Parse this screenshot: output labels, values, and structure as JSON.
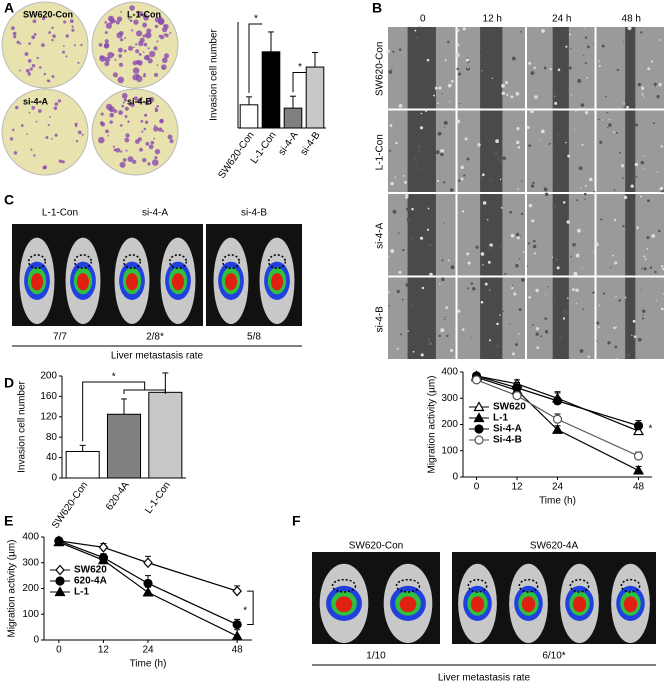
{
  "panels": {
    "labels": [
      "A",
      "B",
      "C",
      "D",
      "E",
      "F"
    ],
    "a_photos": [
      "SW620-Con",
      "L-1-Con",
      "si-4-A",
      "si-4-B"
    ],
    "b_columns": [
      "0",
      "12 h",
      "24 h",
      "48 h"
    ],
    "b_rows": [
      "SW620-Con",
      "L-1-Con",
      "si-4-A",
      "si-4-B"
    ],
    "c_groups": [
      "L-1-Con",
      "si-4-A",
      "si-4-B"
    ],
    "c_rates": [
      "7/7",
      "2/8*",
      "5/8"
    ],
    "c_caption": "Liver metastasis rate",
    "f_groups": [
      "SW620-Con",
      "SW620-4A"
    ],
    "f_rates": [
      "1/10",
      "6/10*"
    ],
    "f_caption": "Liver metastasis rate"
  },
  "chart_data": [
    {
      "type": "bar",
      "ylabel": "Invasion cell number",
      "categories": [
        "SW620-Con",
        "L-1-Con",
        "si-4-A",
        "si-4-B"
      ],
      "values": [
        35,
        115,
        30,
        92
      ],
      "errors": [
        12,
        30,
        18,
        22
      ],
      "colors": [
        "#ffffff",
        "#000000",
        "#808080",
        "#c8c8c8"
      ],
      "ylim": [
        0,
        160
      ],
      "annotations": [
        "*",
        "*"
      ]
    },
    {
      "type": "bar",
      "ylabel": "Invasion cell number",
      "categories": [
        "SW620-Con",
        "620-4A",
        "L-1-Con"
      ],
      "values": [
        52,
        125,
        168
      ],
      "errors": [
        12,
        30,
        38
      ],
      "colors": [
        "#ffffff",
        "#808080",
        "#c8c8c8"
      ],
      "ylim": [
        0,
        200
      ],
      "yticks": [
        0,
        40,
        80,
        120,
        160,
        200
      ],
      "annotations": [
        "*"
      ]
    },
    {
      "type": "line",
      "ylabel": "Migration activity (µm)",
      "xlabel": "Time (h)",
      "x": [
        0,
        12,
        24,
        48
      ],
      "xlim": [
        -4,
        52
      ],
      "xticks": [
        0,
        12,
        24,
        48
      ],
      "ylim": [
        0,
        400
      ],
      "yticks": [
        0,
        100,
        200,
        300,
        400
      ],
      "series": [
        {
          "name": "SW620",
          "color": "#000000",
          "marker": "triangle-open",
          "values": [
            385,
            355,
            300,
            175
          ],
          "errors": [
            8,
            15,
            20,
            15
          ]
        },
        {
          "name": "L-1",
          "color": "#000000",
          "marker": "triangle",
          "values": [
            380,
            330,
            180,
            25
          ],
          "errors": [
            8,
            15,
            15,
            15
          ]
        },
        {
          "name": "Si-4-A",
          "color": "#000000",
          "marker": "circle",
          "values": [
            385,
            340,
            290,
            195
          ],
          "errors": [
            8,
            20,
            35,
            20
          ]
        },
        {
          "name": "Si-4-B",
          "color": "#555555",
          "marker": "circle-open",
          "values": [
            370,
            310,
            220,
            80
          ],
          "errors": [
            8,
            15,
            20,
            15
          ]
        }
      ],
      "annotations": [
        "*"
      ]
    },
    {
      "type": "line",
      "ylabel": "Migration activity (µm)",
      "xlabel": "Time (h)",
      "x": [
        0,
        12,
        24,
        48
      ],
      "xlim": [
        -4,
        52
      ],
      "xticks": [
        0,
        12,
        24,
        48
      ],
      "ylim": [
        0,
        400
      ],
      "yticks": [
        0,
        100,
        200,
        300,
        400
      ],
      "series": [
        {
          "name": "SW620",
          "color": "#000000",
          "marker": "diamond-open",
          "values": [
            385,
            360,
            300,
            190
          ],
          "errors": [
            10,
            15,
            25,
            20
          ]
        },
        {
          "name": "620-4A",
          "color": "#000000",
          "marker": "circle",
          "values": [
            385,
            320,
            220,
            60
          ],
          "errors": [
            10,
            15,
            30,
            20
          ]
        },
        {
          "name": "L-1",
          "color": "#000000",
          "marker": "triangle",
          "values": [
            380,
            310,
            185,
            15
          ],
          "errors": [
            10,
            15,
            20,
            25
          ]
        }
      ],
      "annotations": [
        "*"
      ]
    }
  ]
}
